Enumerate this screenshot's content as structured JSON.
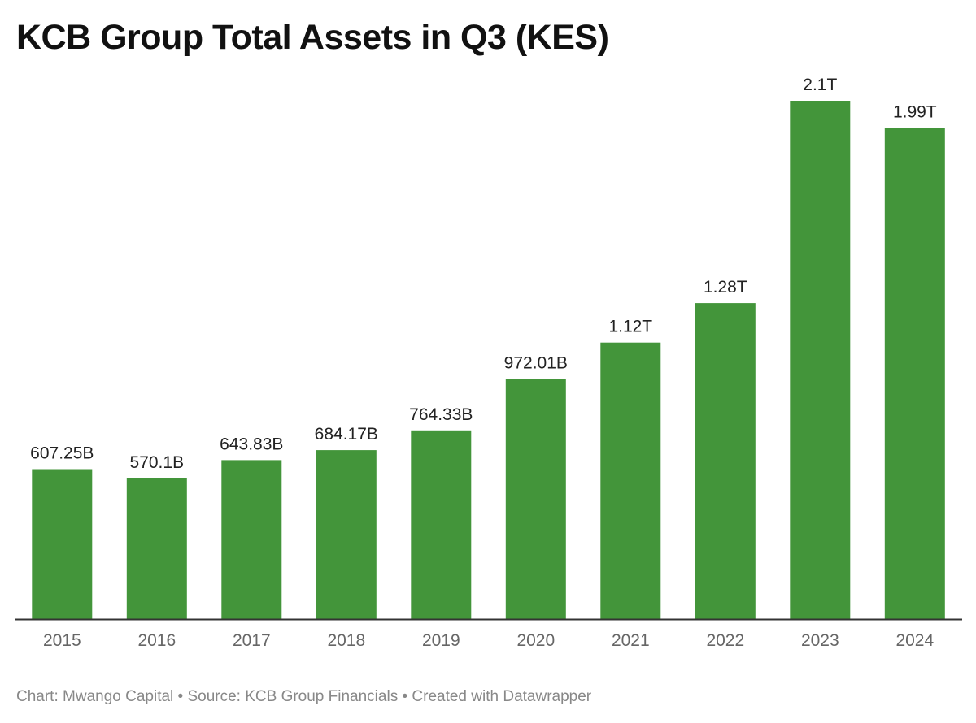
{
  "chart_data": {
    "type": "bar",
    "title": "KCB Group Total Assets in Q3 (KES)",
    "categories": [
      "2015",
      "2016",
      "2017",
      "2018",
      "2019",
      "2020",
      "2021",
      "2022",
      "2023",
      "2024"
    ],
    "values": [
      607.25,
      570.1,
      643.83,
      684.17,
      764.33,
      972.01,
      1120,
      1280,
      2100,
      1990
    ],
    "value_unit": "billion KES",
    "data_labels": [
      "607.25B",
      "570.1B",
      "643.83B",
      "684.17B",
      "764.33B",
      "972.01B",
      "1.12T",
      "1.28T",
      "2.1T",
      "1.99T"
    ],
    "ylim": [
      0,
      2100
    ],
    "bar_color": "#43953a",
    "grid": false,
    "legend": "none"
  },
  "footer": {
    "text": "Chart: Mwango Capital • Source: KCB Group Financials • Created with Datawrapper"
  },
  "colors": {
    "bar": "#43953a",
    "axis": "#333333",
    "title": "#111111",
    "footer": "#888888"
  }
}
